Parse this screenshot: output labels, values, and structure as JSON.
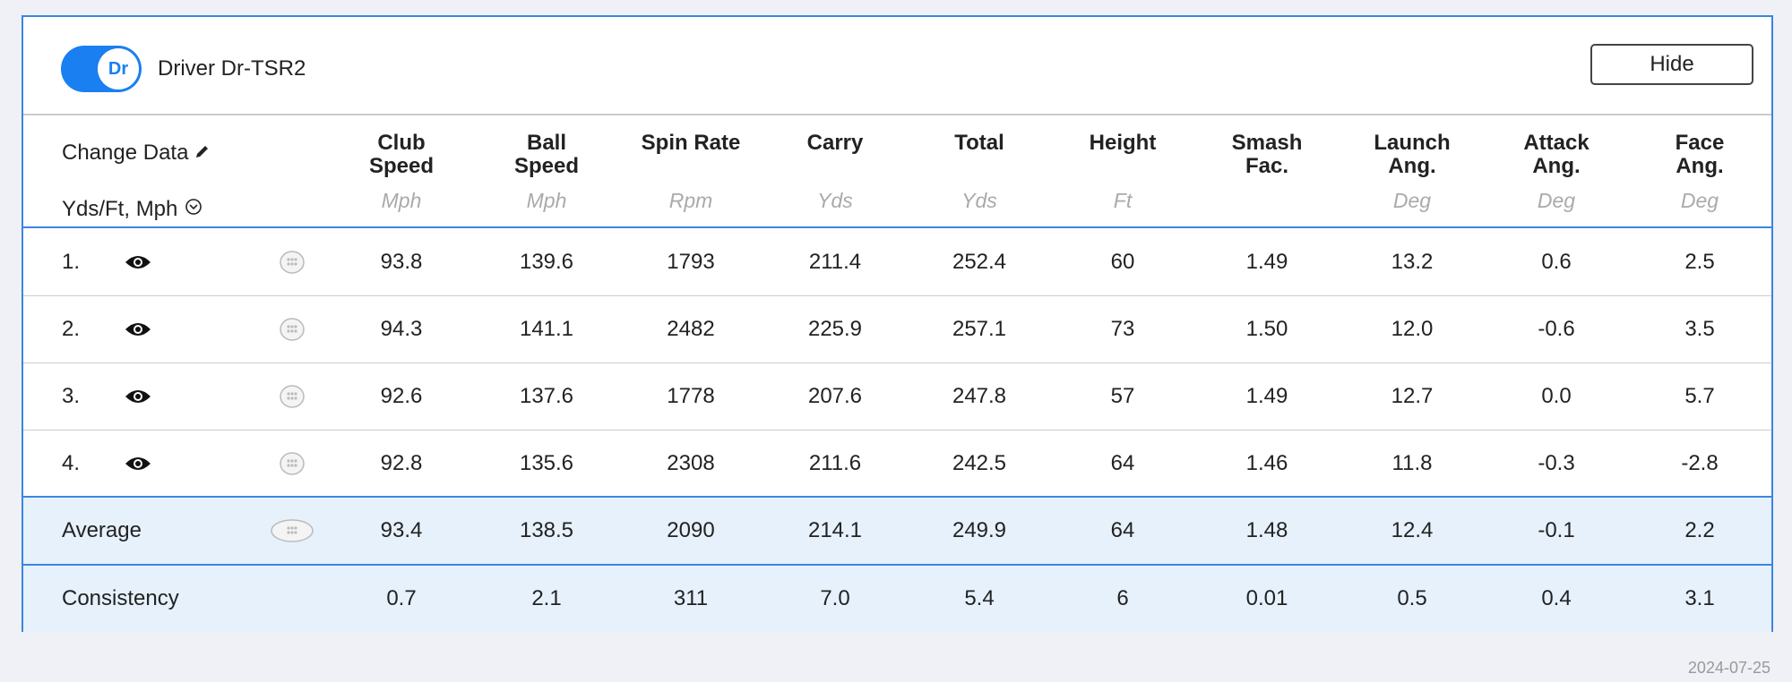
{
  "header": {
    "toggle_label": "Dr",
    "title": "Driver Dr-TSR2",
    "button": "Hide"
  },
  "table": {
    "settings": [
      "Change Data",
      "Yds/Ft, Mph"
    ],
    "columns": [
      {
        "name": [
          "Club",
          "Speed"
        ],
        "unit": "Mph"
      },
      {
        "name": [
          "Ball",
          "Speed"
        ],
        "unit": "Mph"
      },
      {
        "name": [
          "Spin Rate"
        ],
        "unit": "Rpm"
      },
      {
        "name": [
          "Carry"
        ],
        "unit": "Yds"
      },
      {
        "name": [
          "Total"
        ],
        "unit": "Yds"
      },
      {
        "name": [
          "Height"
        ],
        "unit": "Ft"
      },
      {
        "name": [
          "Smash",
          "Fac."
        ]
      },
      {
        "name": [
          "Launch",
          "Ang."
        ],
        "unit": "Deg"
      },
      {
        "name": [
          "Attack",
          "Ang."
        ],
        "unit": "Deg"
      },
      {
        "name": [
          "Face",
          "Ang."
        ],
        "unit": "Deg"
      }
    ],
    "rows": [
      {
        "label": "1.",
        "values": [
          "93.8",
          "139.6",
          "1793",
          "211.4",
          "252.4",
          "60",
          "1.49",
          "13.2",
          "0.6",
          "2.5"
        ]
      },
      {
        "label": "2.",
        "values": [
          "94.3",
          "141.1",
          "2482",
          "225.9",
          "257.1",
          "73",
          "1.50",
          "12.0",
          "-0.6",
          "3.5"
        ]
      },
      {
        "label": "3.",
        "values": [
          "92.6",
          "137.6",
          "1778",
          "207.6",
          "247.8",
          "57",
          "1.49",
          "12.7",
          "0.0",
          "5.7"
        ]
      },
      {
        "label": "4.",
        "values": [
          "92.8",
          "135.6",
          "2308",
          "211.6",
          "242.5",
          "64",
          "1.46",
          "11.8",
          "-0.3",
          "-2.8"
        ]
      }
    ],
    "average": {
      "label": "Average",
      "values": [
        "93.4",
        "138.5",
        "2090",
        "214.1",
        "249.9",
        "64",
        "1.48",
        "12.4",
        "-0.1",
        "2.2"
      ]
    },
    "consistency": {
      "label": "Consistency",
      "values": [
        "0.7",
        "2.1",
        "311",
        "7.0",
        "5.4",
        "6",
        "0.01",
        "0.5",
        "0.4",
        "3.1"
      ]
    }
  },
  "footer": {
    "date": "2024-07-25"
  }
}
